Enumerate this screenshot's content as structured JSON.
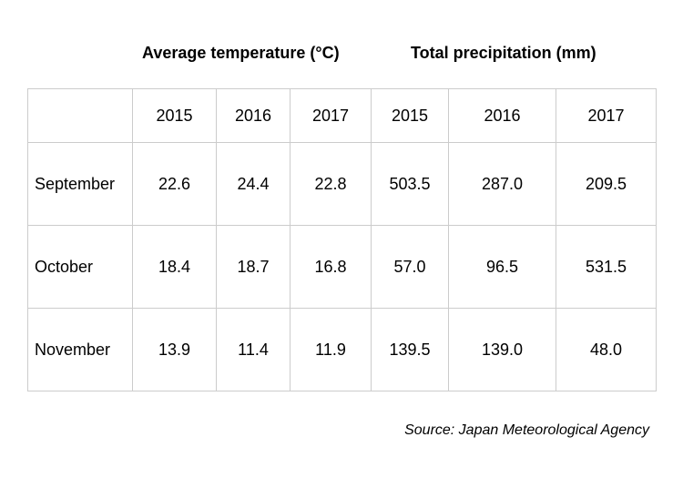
{
  "headers": {
    "temperature": "Average temperature (°C)",
    "precipitation": "Total precipitation (mm)"
  },
  "table": {
    "years": [
      "2015",
      "2016",
      "2017",
      "2015",
      "2016",
      "2017"
    ],
    "rows": [
      {
        "month": "September",
        "values": [
          "22.6",
          "24.4",
          "22.8",
          "503.5",
          "287.0",
          "209.5"
        ]
      },
      {
        "month": "October",
        "values": [
          "18.4",
          "18.7",
          "16.8",
          "57.0",
          "96.5",
          "531.5"
        ]
      },
      {
        "month": "November",
        "values": [
          "13.9",
          "11.4",
          "11.9",
          "139.5",
          "139.0",
          "48.0"
        ]
      }
    ]
  },
  "source": "Source: Japan Meteorological Agency"
}
